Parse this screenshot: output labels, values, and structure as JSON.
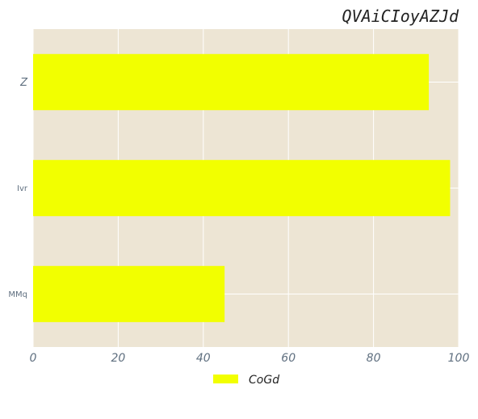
{
  "chart_data": {
    "type": "bar",
    "orientation": "horizontal",
    "title": "QVAiCIoyAZJd",
    "categories": [
      "MMq",
      "Ivr",
      "Z"
    ],
    "series": [
      {
        "name": "CoGd",
        "values": [
          45,
          98,
          93
        ],
        "color": "#f2ff00"
      }
    ],
    "xlim": [
      0,
      100
    ],
    "xticks": [
      0,
      20,
      40,
      60,
      80,
      100
    ],
    "grid": true,
    "legend": "bottom-center",
    "background_color": "#ede5d4",
    "grid_color": "#ffffff"
  }
}
